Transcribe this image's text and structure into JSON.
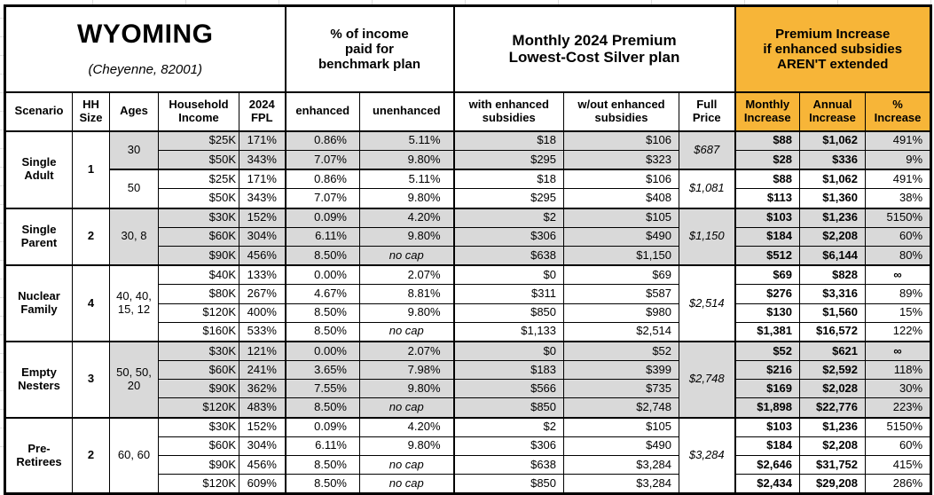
{
  "header": {
    "title": "WYOMING",
    "subtitle": "(Cheyenne, 82001)",
    "group_income": "% of income\npaid for\nbenchmark plan",
    "group_premium": "Monthly 2024 Premium\nLowest-Cost Silver plan",
    "group_increase": "Premium Increase\nif enhanced subsidies\nAREN'T extended",
    "columns": [
      "Scenario",
      "HH\nSize",
      "Ages",
      "Household\nIncome",
      "2024\nFPL",
      "enhanced",
      "unenhanced",
      "with enhanced\nsubsidies",
      "w/out enhanced\nsubsidies",
      "Full\nPrice",
      "Monthly\nIncrease",
      "Annual\nIncrease",
      "%\nIncrease"
    ]
  },
  "colors": {
    "accent_orange": "#F7B538",
    "row_shade": "#D9D9D9",
    "border": "#000000"
  },
  "sections": [
    {
      "scenario": "Single\nAdult",
      "hh_size": "1",
      "groups": [
        {
          "ages": "30",
          "shaded": true,
          "full_price": "$687",
          "rows": [
            {
              "income": "$25K",
              "fpl": "171%",
              "enhanced": "0.86%",
              "unenhanced": "5.11%",
              "with_sub": "$18",
              "wo_sub": "$106",
              "monthly": "$88",
              "annual": "$1,062",
              "pct": "491%"
            },
            {
              "income": "$50K",
              "fpl": "343%",
              "enhanced": "7.07%",
              "unenhanced": "9.80%",
              "with_sub": "$295",
              "wo_sub": "$323",
              "monthly": "$28",
              "annual": "$336",
              "pct": "9%"
            }
          ]
        },
        {
          "ages": "50",
          "shaded": false,
          "full_price": "$1,081",
          "rows": [
            {
              "income": "$25K",
              "fpl": "171%",
              "enhanced": "0.86%",
              "unenhanced": "5.11%",
              "with_sub": "$18",
              "wo_sub": "$106",
              "monthly": "$88",
              "annual": "$1,062",
              "pct": "491%"
            },
            {
              "income": "$50K",
              "fpl": "343%",
              "enhanced": "7.07%",
              "unenhanced": "9.80%",
              "with_sub": "$295",
              "wo_sub": "$408",
              "monthly": "$113",
              "annual": "$1,360",
              "pct": "38%"
            }
          ]
        }
      ]
    },
    {
      "scenario": "Single\nParent",
      "hh_size": "2",
      "groups": [
        {
          "ages": "30, 8",
          "shaded": true,
          "full_price": "$1,150",
          "rows": [
            {
              "income": "$30K",
              "fpl": "152%",
              "enhanced": "0.09%",
              "unenhanced": "4.20%",
              "with_sub": "$2",
              "wo_sub": "$105",
              "monthly": "$103",
              "annual": "$1,236",
              "pct": "5150%"
            },
            {
              "income": "$60K",
              "fpl": "304%",
              "enhanced": "6.11%",
              "unenhanced": "9.80%",
              "with_sub": "$306",
              "wo_sub": "$490",
              "monthly": "$184",
              "annual": "$2,208",
              "pct": "60%"
            },
            {
              "income": "$90K",
              "fpl": "456%",
              "enhanced": "8.50%",
              "unenhanced": "no cap",
              "with_sub": "$638",
              "wo_sub": "$1,150",
              "monthly": "$512",
              "annual": "$6,144",
              "pct": "80%"
            }
          ]
        }
      ]
    },
    {
      "scenario": "Nuclear\nFamily",
      "hh_size": "4",
      "groups": [
        {
          "ages": "40, 40,\n15, 12",
          "shaded": false,
          "full_price": "$2,514",
          "rows": [
            {
              "income": "$40K",
              "fpl": "133%",
              "enhanced": "0.00%",
              "unenhanced": "2.07%",
              "with_sub": "$0",
              "wo_sub": "$69",
              "monthly": "$69",
              "annual": "$828",
              "pct": "∞"
            },
            {
              "income": "$80K",
              "fpl": "267%",
              "enhanced": "4.67%",
              "unenhanced": "8.81%",
              "with_sub": "$311",
              "wo_sub": "$587",
              "monthly": "$276",
              "annual": "$3,316",
              "pct": "89%"
            },
            {
              "income": "$120K",
              "fpl": "400%",
              "enhanced": "8.50%",
              "unenhanced": "9.80%",
              "with_sub": "$850",
              "wo_sub": "$980",
              "monthly": "$130",
              "annual": "$1,560",
              "pct": "15%"
            },
            {
              "income": "$160K",
              "fpl": "533%",
              "enhanced": "8.50%",
              "unenhanced": "no cap",
              "with_sub": "$1,133",
              "wo_sub": "$2,514",
              "monthly": "$1,381",
              "annual": "$16,572",
              "pct": "122%"
            }
          ]
        }
      ]
    },
    {
      "scenario": "Empty\nNesters",
      "hh_size": "3",
      "groups": [
        {
          "ages": "50, 50,\n20",
          "shaded": true,
          "full_price": "$2,748",
          "rows": [
            {
              "income": "$30K",
              "fpl": "121%",
              "enhanced": "0.00%",
              "unenhanced": "2.07%",
              "with_sub": "$0",
              "wo_sub": "$52",
              "monthly": "$52",
              "annual": "$621",
              "pct": "∞"
            },
            {
              "income": "$60K",
              "fpl": "241%",
              "enhanced": "3.65%",
              "unenhanced": "7.98%",
              "with_sub": "$183",
              "wo_sub": "$399",
              "monthly": "$216",
              "annual": "$2,592",
              "pct": "118%"
            },
            {
              "income": "$90K",
              "fpl": "362%",
              "enhanced": "7.55%",
              "unenhanced": "9.80%",
              "with_sub": "$566",
              "wo_sub": "$735",
              "monthly": "$169",
              "annual": "$2,028",
              "pct": "30%"
            },
            {
              "income": "$120K",
              "fpl": "483%",
              "enhanced": "8.50%",
              "unenhanced": "no cap",
              "with_sub": "$850",
              "wo_sub": "$2,748",
              "monthly": "$1,898",
              "annual": "$22,776",
              "pct": "223%"
            }
          ]
        }
      ]
    },
    {
      "scenario": "Pre-\nRetirees",
      "hh_size": "2",
      "groups": [
        {
          "ages": "60, 60",
          "shaded": false,
          "full_price": "$3,284",
          "rows": [
            {
              "income": "$30K",
              "fpl": "152%",
              "enhanced": "0.09%",
              "unenhanced": "4.20%",
              "with_sub": "$2",
              "wo_sub": "$105",
              "monthly": "$103",
              "annual": "$1,236",
              "pct": "5150%"
            },
            {
              "income": "$60K",
              "fpl": "304%",
              "enhanced": "6.11%",
              "unenhanced": "9.80%",
              "with_sub": "$306",
              "wo_sub": "$490",
              "monthly": "$184",
              "annual": "$2,208",
              "pct": "60%"
            },
            {
              "income": "$90K",
              "fpl": "456%",
              "enhanced": "8.50%",
              "unenhanced": "no cap",
              "with_sub": "$638",
              "wo_sub": "$3,284",
              "monthly": "$2,646",
              "annual": "$31,752",
              "pct": "415%"
            },
            {
              "income": "$120K",
              "fpl": "609%",
              "enhanced": "8.50%",
              "unenhanced": "no cap",
              "with_sub": "$850",
              "wo_sub": "$3,284",
              "monthly": "$2,434",
              "annual": "$29,208",
              "pct": "286%"
            }
          ]
        }
      ]
    }
  ],
  "chart_data": {
    "type": "table",
    "title": "WYOMING (Cheyenne, 82001)",
    "column_groups": [
      "% of income paid for benchmark plan",
      "Monthly 2024 Premium Lowest-Cost Silver plan",
      "Premium Increase if enhanced subsidies AREN'T extended"
    ],
    "columns": [
      "Scenario",
      "HH Size",
      "Ages",
      "Household Income",
      "2024 FPL",
      "enhanced",
      "unenhanced",
      "with enhanced subsidies",
      "w/out enhanced subsidies",
      "Full Price",
      "Monthly Increase",
      "Annual Increase",
      "% Increase"
    ],
    "rows": [
      [
        "Single Adult",
        "1",
        "30",
        "$25K",
        "171%",
        "0.86%",
        "5.11%",
        "$18",
        "$106",
        "$687",
        "$88",
        "$1,062",
        "491%"
      ],
      [
        "Single Adult",
        "1",
        "30",
        "$50K",
        "343%",
        "7.07%",
        "9.80%",
        "$295",
        "$323",
        "$687",
        "$28",
        "$336",
        "9%"
      ],
      [
        "Single Adult",
        "1",
        "50",
        "$25K",
        "171%",
        "0.86%",
        "5.11%",
        "$18",
        "$106",
        "$1,081",
        "$88",
        "$1,062",
        "491%"
      ],
      [
        "Single Adult",
        "1",
        "50",
        "$50K",
        "343%",
        "7.07%",
        "9.80%",
        "$295",
        "$408",
        "$1,081",
        "$113",
        "$1,360",
        "38%"
      ],
      [
        "Single Parent",
        "2",
        "30, 8",
        "$30K",
        "152%",
        "0.09%",
        "4.20%",
        "$2",
        "$105",
        "$1,150",
        "$103",
        "$1,236",
        "5150%"
      ],
      [
        "Single Parent",
        "2",
        "30, 8",
        "$60K",
        "304%",
        "6.11%",
        "9.80%",
        "$306",
        "$490",
        "$1,150",
        "$184",
        "$2,208",
        "60%"
      ],
      [
        "Single Parent",
        "2",
        "30, 8",
        "$90K",
        "456%",
        "8.50%",
        "no cap",
        "$638",
        "$1,150",
        "$1,150",
        "$512",
        "$6,144",
        "80%"
      ],
      [
        "Nuclear Family",
        "4",
        "40, 40, 15, 12",
        "$40K",
        "133%",
        "0.00%",
        "2.07%",
        "$0",
        "$69",
        "$2,514",
        "$69",
        "$828",
        "∞"
      ],
      [
        "Nuclear Family",
        "4",
        "40, 40, 15, 12",
        "$80K",
        "267%",
        "4.67%",
        "8.81%",
        "$311",
        "$587",
        "$2,514",
        "$276",
        "$3,316",
        "89%"
      ],
      [
        "Nuclear Family",
        "4",
        "40, 40, 15, 12",
        "$120K",
        "400%",
        "8.50%",
        "9.80%",
        "$850",
        "$980",
        "$2,514",
        "$130",
        "$1,560",
        "15%"
      ],
      [
        "Nuclear Family",
        "4",
        "40, 40, 15, 12",
        "$160K",
        "533%",
        "8.50%",
        "no cap",
        "$1,133",
        "$2,514",
        "$2,514",
        "$1,381",
        "$16,572",
        "122%"
      ],
      [
        "Empty Nesters",
        "3",
        "50, 50, 20",
        "$30K",
        "121%",
        "0.00%",
        "2.07%",
        "$0",
        "$52",
        "$2,748",
        "$52",
        "$621",
        "∞"
      ],
      [
        "Empty Nesters",
        "3",
        "50, 50, 20",
        "$60K",
        "241%",
        "3.65%",
        "7.98%",
        "$183",
        "$399",
        "$2,748",
        "$216",
        "$2,592",
        "118%"
      ],
      [
        "Empty Nesters",
        "3",
        "50, 50, 20",
        "$90K",
        "362%",
        "7.55%",
        "9.80%",
        "$566",
        "$735",
        "$2,748",
        "$169",
        "$2,028",
        "30%"
      ],
      [
        "Empty Nesters",
        "3",
        "50, 50, 20",
        "$120K",
        "483%",
        "8.50%",
        "no cap",
        "$850",
        "$2,748",
        "$2,748",
        "$1,898",
        "$22,776",
        "223%"
      ],
      [
        "Pre-Retirees",
        "2",
        "60, 60",
        "$30K",
        "152%",
        "0.09%",
        "4.20%",
        "$2",
        "$105",
        "$3,284",
        "$103",
        "$1,236",
        "5150%"
      ],
      [
        "Pre-Retirees",
        "2",
        "60, 60",
        "$60K",
        "304%",
        "6.11%",
        "9.80%",
        "$306",
        "$490",
        "$3,284",
        "$184",
        "$2,208",
        "60%"
      ],
      [
        "Pre-Retirees",
        "2",
        "60, 60",
        "$90K",
        "456%",
        "8.50%",
        "no cap",
        "$638",
        "$3,284",
        "$3,284",
        "$2,646",
        "$31,752",
        "415%"
      ],
      [
        "Pre-Retirees",
        "2",
        "60, 60",
        "$120K",
        "609%",
        "8.50%",
        "no cap",
        "$850",
        "$3,284",
        "$3,284",
        "$2,434",
        "$29,208",
        "286%"
      ]
    ]
  }
}
